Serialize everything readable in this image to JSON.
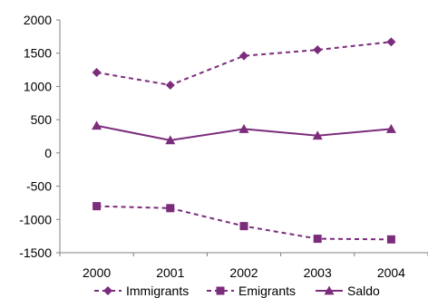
{
  "chart_data": {
    "type": "line",
    "categories": [
      "2000",
      "2001",
      "2002",
      "2003",
      "2004"
    ],
    "y_ticks": [
      "2000",
      "1500",
      "1000",
      "500",
      "0",
      "-500",
      "-1000",
      "-1500"
    ],
    "ylim": [
      -1500,
      2000
    ],
    "grid": false,
    "legend_position": "bottom",
    "series": [
      {
        "name": "Immigrants",
        "values": [
          1210,
          1020,
          1460,
          1550,
          1670
        ],
        "line_style": "dashed",
        "marker": "diamond",
        "color": "#7B2C7B"
      },
      {
        "name": "Emigrants",
        "values": [
          -800,
          -830,
          -1100,
          -1290,
          -1300
        ],
        "line_style": "dashed",
        "marker": "square",
        "color": "#7B2C7B"
      },
      {
        "name": "Saldo",
        "values": [
          410,
          190,
          360,
          260,
          360
        ],
        "line_style": "solid",
        "marker": "triangle",
        "color": "#7B2C7B"
      }
    ]
  }
}
